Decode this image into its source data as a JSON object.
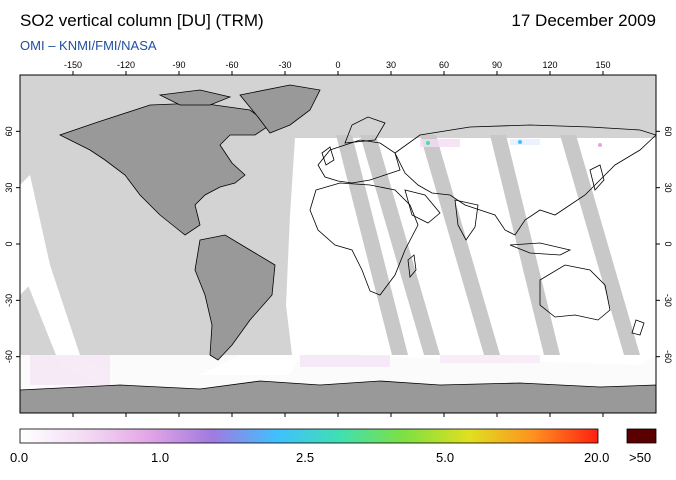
{
  "header": {
    "title": "SO2 vertical column [DU] (TRM)",
    "date": "17 December 2009",
    "credit_omi": "OMI",
    "credit_dash": "–",
    "credit_org": "KNMI/FMI/NASA"
  },
  "map": {
    "projection": "equirectangular",
    "lon_range": [
      -180,
      180
    ],
    "lat_range": [
      -90,
      90
    ],
    "lon_ticks": [
      -150,
      -120,
      -90,
      -60,
      -30,
      0,
      30,
      60,
      90,
      120,
      150
    ],
    "lat_ticks": [
      60,
      30,
      0,
      -30,
      -60
    ],
    "colors": {
      "no_data": "#d3d3d3",
      "land_no_data": "#999999",
      "coastline": "#000000",
      "measured_background": "#ffffff"
    }
  },
  "legend": {
    "labels": [
      "0.0",
      "1.0",
      "2.5",
      "5.0",
      "20.0"
    ],
    "overflow_label": ">50",
    "overflow_color": "#5a0000",
    "stops": [
      "#ffffff",
      "#f4dcf4",
      "#e2a6e6",
      "#a07ae0",
      "#40c0ff",
      "#40e0b0",
      "#80e040",
      "#e0e020",
      "#ff9020",
      "#ff2010"
    ]
  }
}
